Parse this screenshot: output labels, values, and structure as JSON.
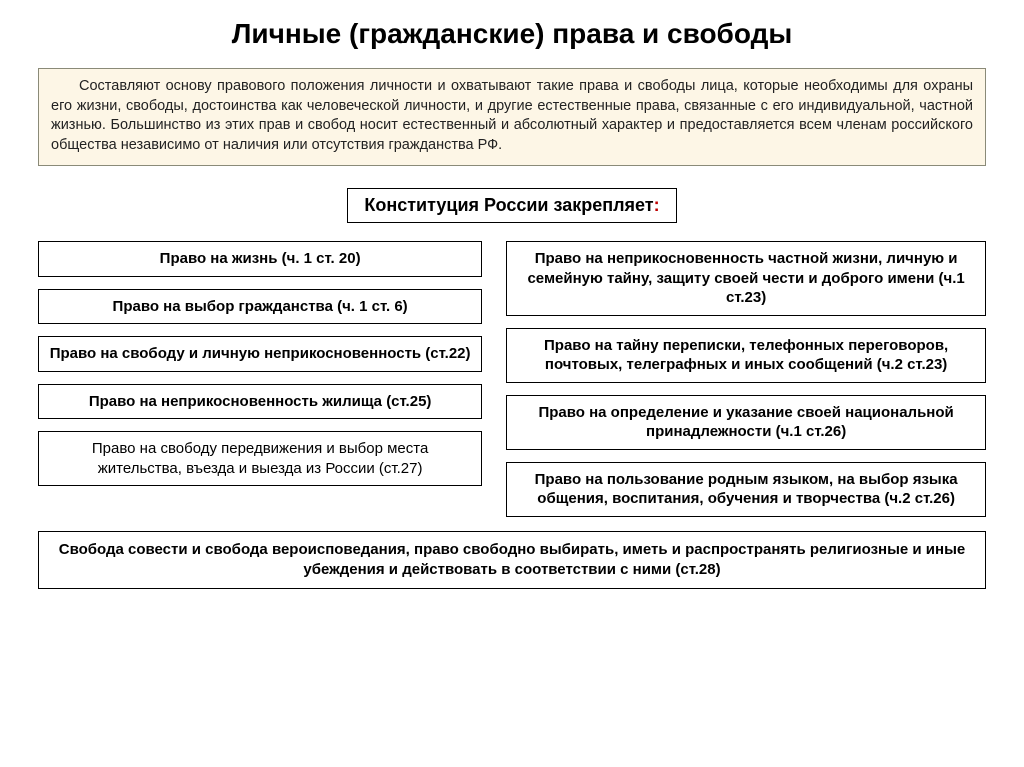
{
  "title": "Личные (гражданские) права и свободы",
  "intro": "Составляют основу правового положения личности и охватывают такие права и свободы лица, которые необходимы для охраны его жизни, свободы, достоинства как человеческой личности, и другие естественные права, связанные с его индивидуальной, частной жизнью. Большинство из этих прав и свобод носит естественный и абсолютный характер и предоставляется всем членам российского общества независимо от наличия или отсутствия гражданства РФ.",
  "subtitle": "Конституция России закрепляет",
  "left": [
    "Право на жизнь (ч. 1 ст. 20)",
    "Право на выбор гражданства (ч. 1 ст. 6)",
    "Право на свободу и личную неприкосновенность (ст.22)",
    "Право на неприкосновенность жилища (ст.25)",
    "Право на свободу передвижения и выбор места жительства, въезда и выезда  из России (ст.27)"
  ],
  "right": [
    "Право на неприкосновенность частной жизни, личную и семейную тайну, защиту своей чести и доброго имени (ч.1 ст.23)",
    "Право на тайну переписки, телефонных переговоров, почтовых, телеграфных и иных сообщений (ч.2 ст.23)",
    "Право на определение и указание своей национальной принадлежности (ч.1 ст.26)",
    "Право на пользование родным языком, на выбор языка общения, воспитания, обучения и творчества  (ч.2 ст.26)"
  ],
  "bottom": "Свобода совести и свобода вероисповедания, право свободно выбирать, иметь и распространять религиозные и иные убеждения и действовать в соответствии с ними (ст.28)",
  "left_plain_indices": [
    4
  ],
  "colors": {
    "intro_bg": "#fdf6e6",
    "intro_border": "#8a8a78",
    "box_border": "#000000",
    "page_bg": "#ffffff",
    "colon": "#c00000"
  }
}
